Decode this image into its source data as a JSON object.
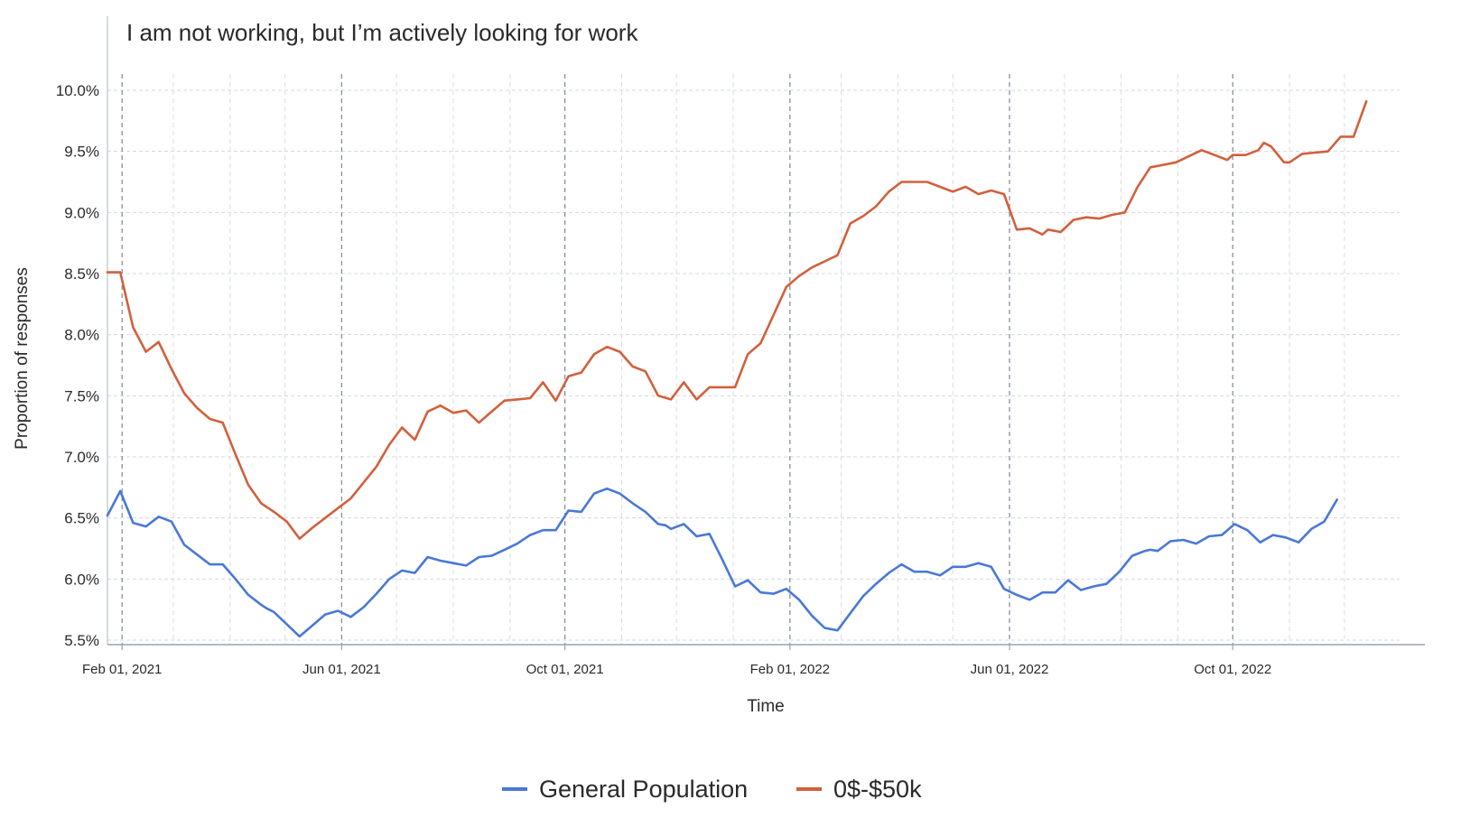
{
  "chart_data": {
    "type": "line",
    "title": "I am not working, but I’m actively looking for work",
    "xlabel": "Time",
    "ylabel": "Proportion of responses",
    "ylim": [
      5.5,
      10.0
    ],
    "xlim": [
      "2021-01-24",
      "2023-01-14"
    ],
    "yticks": [
      {
        "value": 5.5,
        "label": "5.5%"
      },
      {
        "value": 6.0,
        "label": "6.0%"
      },
      {
        "value": 6.5,
        "label": "6.5%"
      },
      {
        "value": 7.0,
        "label": "7.0%"
      },
      {
        "value": 7.5,
        "label": "7.5%"
      },
      {
        "value": 8.0,
        "label": "8.0%"
      },
      {
        "value": 8.5,
        "label": "8.5%"
      },
      {
        "value": 9.0,
        "label": "9.0%"
      },
      {
        "value": 9.5,
        "label": "9.5%"
      },
      {
        "value": 10.0,
        "label": "10.0%"
      }
    ],
    "xticks": [
      {
        "date": "2021-02-01",
        "label": "Feb 01, 2021"
      },
      {
        "date": "2021-06-01",
        "label": "Jun 01, 2021"
      },
      {
        "date": "2021-10-01",
        "label": "Oct 01, 2021"
      },
      {
        "date": "2022-02-01",
        "label": "Feb 01, 2022"
      },
      {
        "date": "2022-06-01",
        "label": "Jun 01, 2022"
      },
      {
        "date": "2022-10-01",
        "label": "Oct 01, 2022"
      }
    ],
    "grid": true,
    "legend_position": "bottom-center",
    "series": [
      {
        "name": "General Population",
        "color": "#4a78d6",
        "points": [
          [
            "2021-01-24",
            6.52
          ],
          [
            "2021-01-31",
            6.72
          ],
          [
            "2021-02-07",
            6.46
          ],
          [
            "2021-02-14",
            6.43
          ],
          [
            "2021-02-21",
            6.51
          ],
          [
            "2021-02-28",
            6.47
          ],
          [
            "2021-03-07",
            6.28
          ],
          [
            "2021-03-14",
            6.2
          ],
          [
            "2021-03-21",
            6.12
          ],
          [
            "2021-03-28",
            6.12
          ],
          [
            "2021-04-04",
            6.0
          ],
          [
            "2021-04-11",
            5.87
          ],
          [
            "2021-04-18",
            5.79
          ],
          [
            "2021-04-21",
            5.76
          ],
          [
            "2021-04-25",
            5.73
          ],
          [
            "2021-05-02",
            5.63
          ],
          [
            "2021-05-09",
            5.53
          ],
          [
            "2021-05-16",
            5.62
          ],
          [
            "2021-05-23",
            5.71
          ],
          [
            "2021-05-30",
            5.74
          ],
          [
            "2021-06-06",
            5.69
          ],
          [
            "2021-06-13",
            5.77
          ],
          [
            "2021-06-20",
            5.88
          ],
          [
            "2021-06-27",
            6.0
          ],
          [
            "2021-07-04",
            6.07
          ],
          [
            "2021-07-11",
            6.05
          ],
          [
            "2021-07-18",
            6.18
          ],
          [
            "2021-07-25",
            6.15
          ],
          [
            "2021-08-01",
            6.13
          ],
          [
            "2021-08-08",
            6.11
          ],
          [
            "2021-08-15",
            6.18
          ],
          [
            "2021-08-22",
            6.19
          ],
          [
            "2021-08-29",
            6.24
          ],
          [
            "2021-09-05",
            6.29
          ],
          [
            "2021-09-12",
            6.36
          ],
          [
            "2021-09-19",
            6.4
          ],
          [
            "2021-09-26",
            6.4
          ],
          [
            "2021-10-03",
            6.56
          ],
          [
            "2021-10-10",
            6.55
          ],
          [
            "2021-10-17",
            6.7
          ],
          [
            "2021-10-24",
            6.74
          ],
          [
            "2021-10-31",
            6.7
          ],
          [
            "2021-11-07",
            6.62
          ],
          [
            "2021-11-14",
            6.55
          ],
          [
            "2021-11-21",
            6.45
          ],
          [
            "2021-11-25",
            6.44
          ],
          [
            "2021-11-28",
            6.41
          ],
          [
            "2021-12-05",
            6.45
          ],
          [
            "2021-12-12",
            6.35
          ],
          [
            "2021-12-19",
            6.37
          ],
          [
            "2021-12-26",
            6.16
          ],
          [
            "2022-01-02",
            5.94
          ],
          [
            "2022-01-09",
            5.99
          ],
          [
            "2022-01-16",
            5.89
          ],
          [
            "2022-01-23",
            5.88
          ],
          [
            "2022-01-30",
            5.92
          ],
          [
            "2022-02-06",
            5.83
          ],
          [
            "2022-02-13",
            5.7
          ],
          [
            "2022-02-20",
            5.6
          ],
          [
            "2022-02-27",
            5.58
          ],
          [
            "2022-03-06",
            5.72
          ],
          [
            "2022-03-13",
            5.86
          ],
          [
            "2022-03-20",
            5.96
          ],
          [
            "2022-03-27",
            6.05
          ],
          [
            "2022-04-03",
            6.12
          ],
          [
            "2022-04-10",
            6.06
          ],
          [
            "2022-04-17",
            6.06
          ],
          [
            "2022-04-24",
            6.03
          ],
          [
            "2022-05-01",
            6.1
          ],
          [
            "2022-05-08",
            6.1
          ],
          [
            "2022-05-15",
            6.13
          ],
          [
            "2022-05-22",
            6.1
          ],
          [
            "2022-05-29",
            5.92
          ],
          [
            "2022-06-05",
            5.87
          ],
          [
            "2022-06-12",
            5.83
          ],
          [
            "2022-06-19",
            5.89
          ],
          [
            "2022-06-26",
            5.89
          ],
          [
            "2022-07-03",
            5.99
          ],
          [
            "2022-07-10",
            5.91
          ],
          [
            "2022-07-17",
            5.94
          ],
          [
            "2022-07-24",
            5.96
          ],
          [
            "2022-07-31",
            6.06
          ],
          [
            "2022-08-07",
            6.19
          ],
          [
            "2022-08-14",
            6.23
          ],
          [
            "2022-08-17",
            6.24
          ],
          [
            "2022-08-21",
            6.23
          ],
          [
            "2022-08-28",
            6.31
          ],
          [
            "2022-09-04",
            6.32
          ],
          [
            "2022-09-11",
            6.29
          ],
          [
            "2022-09-18",
            6.35
          ],
          [
            "2022-09-25",
            6.36
          ],
          [
            "2022-10-02",
            6.45
          ],
          [
            "2022-10-09",
            6.4
          ],
          [
            "2022-10-16",
            6.3
          ],
          [
            "2022-10-23",
            6.36
          ],
          [
            "2022-10-30",
            6.34
          ],
          [
            "2022-11-06",
            6.3
          ],
          [
            "2022-11-13",
            6.41
          ],
          [
            "2022-11-20",
            6.47
          ],
          [
            "2022-11-27",
            6.65
          ]
        ]
      },
      {
        "name": "0$-$50k",
        "color": "#d1603d",
        "points": [
          [
            "2021-01-24",
            8.51
          ],
          [
            "2021-01-31",
            8.51
          ],
          [
            "2021-02-07",
            8.06
          ],
          [
            "2021-02-14",
            7.86
          ],
          [
            "2021-02-21",
            7.94
          ],
          [
            "2021-02-28",
            7.72
          ],
          [
            "2021-03-07",
            7.52
          ],
          [
            "2021-03-14",
            7.4
          ],
          [
            "2021-03-21",
            7.31
          ],
          [
            "2021-03-28",
            7.28
          ],
          [
            "2021-04-04",
            7.02
          ],
          [
            "2021-04-11",
            6.77
          ],
          [
            "2021-04-18",
            6.62
          ],
          [
            "2021-04-25",
            6.55
          ],
          [
            "2021-05-02",
            6.47
          ],
          [
            "2021-05-09",
            6.33
          ],
          [
            "2021-05-16",
            6.42
          ],
          [
            "2021-05-23",
            6.5
          ],
          [
            "2021-05-30",
            6.58
          ],
          [
            "2021-06-06",
            6.66
          ],
          [
            "2021-06-13",
            6.79
          ],
          [
            "2021-06-20",
            6.92
          ],
          [
            "2021-06-27",
            7.1
          ],
          [
            "2021-07-04",
            7.24
          ],
          [
            "2021-07-11",
            7.14
          ],
          [
            "2021-07-18",
            7.37
          ],
          [
            "2021-07-25",
            7.42
          ],
          [
            "2021-08-01",
            7.36
          ],
          [
            "2021-08-08",
            7.38
          ],
          [
            "2021-08-15",
            7.28
          ],
          [
            "2021-08-22",
            7.37
          ],
          [
            "2021-08-29",
            7.46
          ],
          [
            "2021-09-05",
            7.47
          ],
          [
            "2021-09-12",
            7.48
          ],
          [
            "2021-09-19",
            7.61
          ],
          [
            "2021-09-26",
            7.46
          ],
          [
            "2021-10-03",
            7.66
          ],
          [
            "2021-10-10",
            7.69
          ],
          [
            "2021-10-17",
            7.84
          ],
          [
            "2021-10-24",
            7.9
          ],
          [
            "2021-10-31",
            7.86
          ],
          [
            "2021-11-07",
            7.74
          ],
          [
            "2021-11-14",
            7.7
          ],
          [
            "2021-11-21",
            7.5
          ],
          [
            "2021-11-28",
            7.47
          ],
          [
            "2021-12-05",
            7.61
          ],
          [
            "2021-12-12",
            7.47
          ],
          [
            "2021-12-19",
            7.57
          ],
          [
            "2021-12-26",
            7.57
          ],
          [
            "2022-01-02",
            7.57
          ],
          [
            "2022-01-09",
            7.84
          ],
          [
            "2022-01-16",
            7.93
          ],
          [
            "2022-01-23",
            8.16
          ],
          [
            "2022-01-30",
            8.39
          ],
          [
            "2022-02-06",
            8.48
          ],
          [
            "2022-02-13",
            8.55
          ],
          [
            "2022-02-20",
            8.6
          ],
          [
            "2022-02-27",
            8.65
          ],
          [
            "2022-03-06",
            8.91
          ],
          [
            "2022-03-13",
            8.97
          ],
          [
            "2022-03-20",
            9.05
          ],
          [
            "2022-03-27",
            9.17
          ],
          [
            "2022-04-03",
            9.25
          ],
          [
            "2022-04-10",
            9.25
          ],
          [
            "2022-04-17",
            9.25
          ],
          [
            "2022-04-24",
            9.21
          ],
          [
            "2022-05-01",
            9.17
          ],
          [
            "2022-05-08",
            9.21
          ],
          [
            "2022-05-15",
            9.15
          ],
          [
            "2022-05-22",
            9.18
          ],
          [
            "2022-05-29",
            9.15
          ],
          [
            "2022-06-05",
            8.86
          ],
          [
            "2022-06-12",
            8.87
          ],
          [
            "2022-06-19",
            8.82
          ],
          [
            "2022-06-22",
            8.86
          ],
          [
            "2022-06-29",
            8.84
          ],
          [
            "2022-07-06",
            8.94
          ],
          [
            "2022-07-13",
            8.96
          ],
          [
            "2022-07-20",
            8.95
          ],
          [
            "2022-07-27",
            8.98
          ],
          [
            "2022-08-03",
            9.0
          ],
          [
            "2022-08-10",
            9.21
          ],
          [
            "2022-08-17",
            9.37
          ],
          [
            "2022-08-24",
            9.39
          ],
          [
            "2022-08-31",
            9.41
          ],
          [
            "2022-09-07",
            9.46
          ],
          [
            "2022-09-14",
            9.51
          ],
          [
            "2022-09-21",
            9.47
          ],
          [
            "2022-09-28",
            9.43
          ],
          [
            "2022-10-01",
            9.47
          ],
          [
            "2022-10-08",
            9.47
          ],
          [
            "2022-10-15",
            9.51
          ],
          [
            "2022-10-18",
            9.57
          ],
          [
            "2022-10-22",
            9.54
          ],
          [
            "2022-10-29",
            9.41
          ],
          [
            "2022-11-01",
            9.41
          ],
          [
            "2022-11-08",
            9.48
          ],
          [
            "2022-11-15",
            9.49
          ],
          [
            "2022-11-22",
            9.5
          ],
          [
            "2022-11-29",
            9.62
          ],
          [
            "2022-12-06",
            9.62
          ],
          [
            "2022-12-13",
            9.91
          ]
        ]
      }
    ]
  }
}
